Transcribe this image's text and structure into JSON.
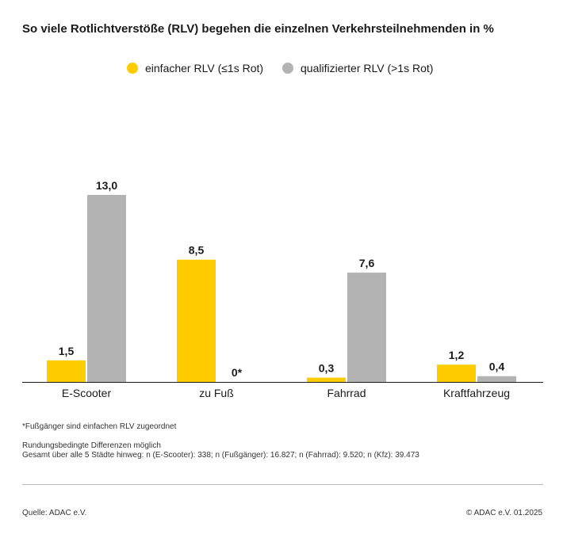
{
  "chart_data": {
    "type": "bar",
    "title": "So viele Rotlichtverstöße (RLV) begehen die einzelnen Verkehrsteilnehmenden in %",
    "categories": [
      "E-Scooter",
      "zu Fuß",
      "Fahrrad",
      "Kraftfahrzeug"
    ],
    "series": [
      {
        "name": "einfacher RLV (≤1s Rot)",
        "color": "#ffcc00",
        "values": [
          1.5,
          8.5,
          0.3,
          1.2
        ],
        "labels": [
          "1,5",
          "8,5",
          "0,3",
          "1,2"
        ]
      },
      {
        "name": "qualifizierter RLV (>1s Rot)",
        "color": "#b3b3b3",
        "values": [
          13.0,
          0,
          7.6,
          0.4
        ],
        "labels": [
          "13,0",
          "0*",
          "7,6",
          "0,4"
        ]
      }
    ],
    "ylim": [
      0,
      13
    ],
    "grid": false,
    "legend_position": "top-center",
    "xlabel": "",
    "ylabel": ""
  },
  "notes": {
    "footnote": "*Fußgänger sind einfachen RLV zugeordnet",
    "rounding": "Rundungsbedingte Differenzen möglich",
    "totals": "Gesamt über alle 5 Städte hinweg: n (E-Scooter): 338; n (Fußgänger): 16.827; n (Fahrrad): 9.520; n (Kfz): 39.473"
  },
  "footer": {
    "source": "Quelle: ADAC e.V.",
    "copyright": "© ADAC e.V. 01.2025"
  }
}
